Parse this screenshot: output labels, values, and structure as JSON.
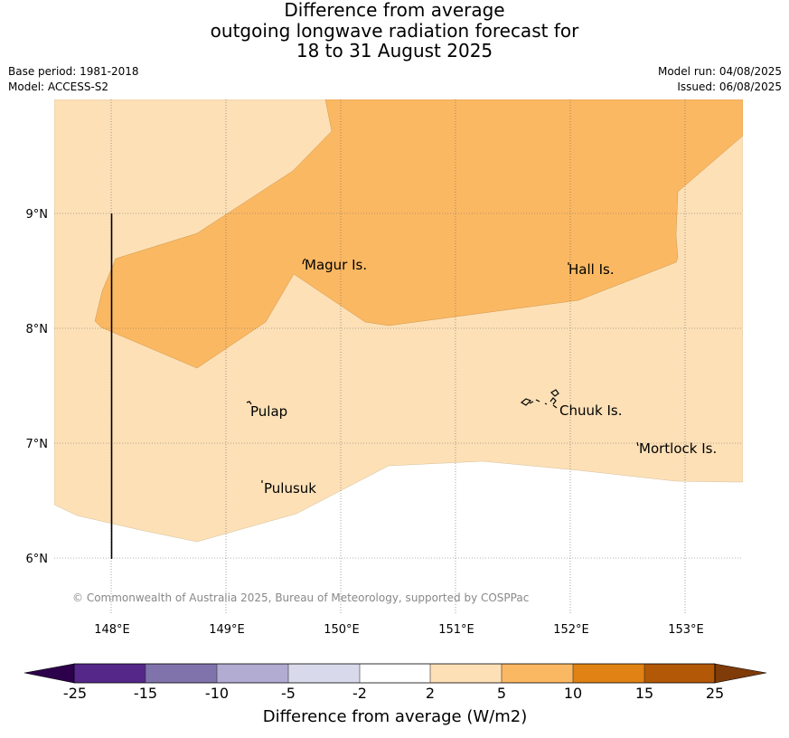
{
  "title": {
    "line1": "Difference from average",
    "line2": "outgoing longwave radiation forecast for",
    "line3": "18 to 31 August 2025"
  },
  "info": {
    "base_period": "Base period: 1981-2018",
    "model": "Model: ACCESS-S2",
    "model_run": "Model run: 04/08/2025",
    "issued": "Issued: 06/08/2025"
  },
  "map": {
    "lon_ticks": [
      "148°E",
      "149°E",
      "150°E",
      "151°E",
      "152°E",
      "153°E"
    ],
    "lat_ticks": [
      "9°N",
      "8°N",
      "7°N",
      "6°N"
    ],
    "places": [
      {
        "name": "Magur Is.",
        "lon": 149.68,
        "lat": 8.57
      },
      {
        "name": "Hall Is.",
        "lon": 151.97,
        "lat": 8.55
      },
      {
        "name": "Pulap",
        "lon": 149.17,
        "lat": 7.37
      },
      {
        "name": "Chuuk Is.",
        "lon": 151.75,
        "lat": 7.38
      },
      {
        "name": "Mortlock Is.",
        "lon": 152.6,
        "lat": 7.01
      },
      {
        "name": "Pulusuk",
        "lon": 149.3,
        "lat": 6.69
      }
    ],
    "colors": {
      "band_2_5": "#fde0b6",
      "band_5_10": "#fbb862"
    },
    "copyright": "© Commonwealth of Australia 2025, Bureau of Meteorology, supported by COSPPac"
  },
  "colorbar": {
    "bins": [
      {
        "color": "#2d004b"
      },
      {
        "color": "#542788"
      },
      {
        "color": "#8073ac"
      },
      {
        "color": "#b2abd2"
      },
      {
        "color": "#d8daeb"
      },
      {
        "color": "#ffffff"
      },
      {
        "color": "#fde0b6"
      },
      {
        "color": "#fbb862"
      },
      {
        "color": "#e08214"
      },
      {
        "color": "#b35806"
      },
      {
        "color": "#7f3b08"
      }
    ],
    "tick_labels": [
      "-25",
      "-15",
      "-10",
      "-5",
      "-2",
      "2",
      "5",
      "10",
      "15",
      "25"
    ],
    "label": "Difference from average (W/m2)"
  }
}
